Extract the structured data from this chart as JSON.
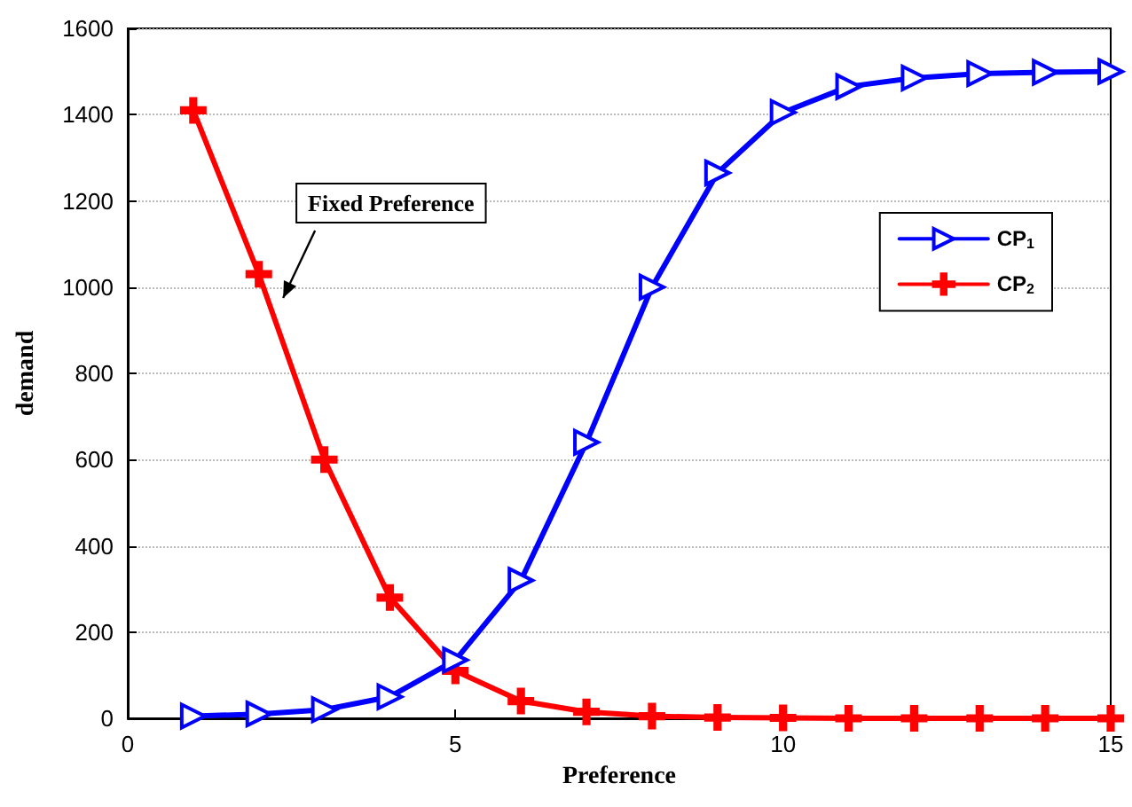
{
  "chart_data": {
    "type": "line",
    "xlabel": "Preference",
    "ylabel": "demand",
    "x": [
      1,
      2,
      3,
      4,
      5,
      6,
      7,
      8,
      9,
      10,
      11,
      12,
      13,
      14,
      15
    ],
    "series": [
      {
        "name": "CP$_{1}$",
        "color": "#0000ff",
        "marker": "triangle",
        "values": [
          5,
          10,
          20,
          50,
          135,
          320,
          640,
          1000,
          1265,
          1405,
          1465,
          1485,
          1495,
          1498,
          1500
        ]
      },
      {
        "name": "CP$_{2}$",
        "color": "#ff0000",
        "marker": "cross",
        "values": [
          1410,
          1030,
          600,
          280,
          110,
          40,
          15,
          5,
          2,
          1,
          0,
          0,
          0,
          0,
          0
        ]
      }
    ],
    "xlim": [
      0,
      15
    ],
    "xticks": [
      0,
      5,
      10,
      15
    ],
    "ylim": [
      0,
      1600
    ],
    "yticks": [
      0,
      200,
      400,
      600,
      800,
      1000,
      1200,
      1400,
      1600
    ],
    "annotations": [
      "Fixed Preference"
    ],
    "grid": "y",
    "legend": "top right",
    "line_style": "solid"
  }
}
